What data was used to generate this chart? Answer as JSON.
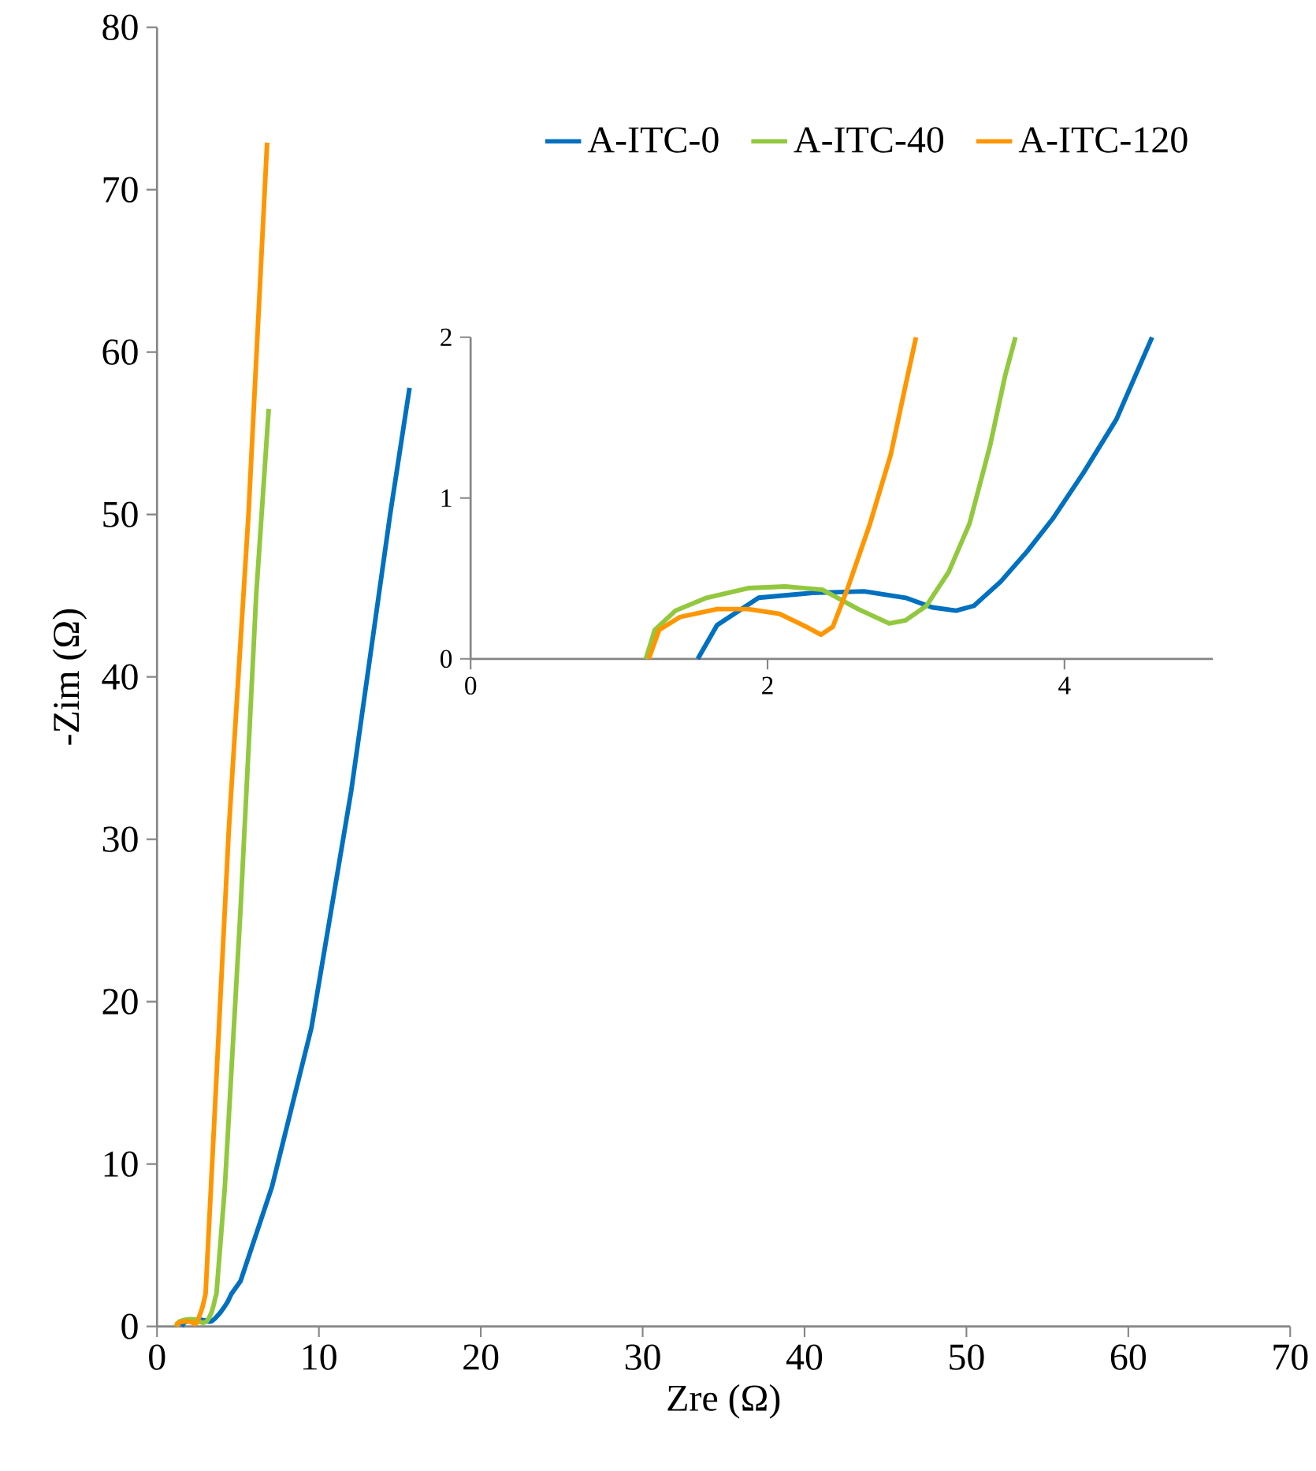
{
  "chart_data": [
    {
      "type": "line",
      "xlabel": "Zre (Ω)",
      "ylabel": "-Zim (Ω)",
      "xlim": [
        0,
        70
      ],
      "ylim": [
        0,
        80
      ],
      "xticks": [
        0,
        10,
        20,
        30,
        40,
        50,
        60,
        70
      ],
      "yticks": [
        0,
        10,
        20,
        30,
        40,
        50,
        60,
        70,
        80
      ],
      "legend": "top right",
      "series": [
        {
          "name": "A-ITC-0",
          "color": "#0070c0",
          "x": [
            1.53,
            1.66,
            1.94,
            2.3,
            2.65,
            2.93,
            3.11,
            3.27,
            3.39,
            3.57,
            3.75,
            3.92,
            4.13,
            4.35,
            4.59,
            5.16,
            7.1,
            9.54,
            12.0,
            14.4,
            15.6
          ],
          "values": [
            0,
            0.21,
            0.38,
            0.41,
            0.42,
            0.38,
            0.32,
            0.3,
            0.33,
            0.48,
            0.67,
            0.87,
            1.16,
            1.49,
            2.0,
            2.8,
            8.6,
            18.4,
            33,
            50,
            57.8
          ]
        },
        {
          "name": "A-ITC-40",
          "color": "#92c83e",
          "x": [
            1.18,
            1.24,
            1.38,
            1.59,
            1.87,
            2.12,
            2.37,
            2.61,
            2.82,
            2.93,
            3.07,
            3.22,
            3.36,
            3.5,
            3.6,
            3.67,
            4.19,
            5.16,
            6.13,
            6.9
          ],
          "values": [
            0,
            0.18,
            0.3,
            0.38,
            0.44,
            0.45,
            0.43,
            0.31,
            0.22,
            0.24,
            0.33,
            0.54,
            0.84,
            1.33,
            1.76,
            2.0,
            8.6,
            25.7,
            45.1,
            56.5
          ]
        },
        {
          "name": "A-ITC-120",
          "color": "#ff9600",
          "x": [
            1.2,
            1.27,
            1.41,
            1.66,
            1.87,
            2.08,
            2.26,
            2.36,
            2.44,
            2.54,
            2.69,
            2.83,
            2.92,
            3.0,
            3.46,
            4.43,
            5.65,
            6.8
          ],
          "values": [
            0,
            0.18,
            0.26,
            0.31,
            0.31,
            0.28,
            0.2,
            0.15,
            0.2,
            0.44,
            0.84,
            1.27,
            1.66,
            2.0,
            11.1,
            30.5,
            50,
            72.9
          ]
        }
      ]
    },
    {
      "type": "line",
      "xlim": [
        0,
        5
      ],
      "ylim": [
        0,
        2
      ],
      "xticks": [
        0,
        2,
        4
      ],
      "yticks": [
        0,
        1,
        2
      ],
      "series": [
        {
          "color": "#0070c0",
          "x": [
            1.53,
            1.66,
            1.94,
            2.3,
            2.65,
            2.93,
            3.11,
            3.27,
            3.39,
            3.57,
            3.75,
            3.92,
            4.13,
            4.35,
            4.59
          ],
          "values": [
            0,
            0.21,
            0.38,
            0.41,
            0.42,
            0.38,
            0.32,
            0.3,
            0.33,
            0.48,
            0.67,
            0.87,
            1.16,
            1.49,
            2.0
          ]
        },
        {
          "color": "#92c83e",
          "x": [
            1.18,
            1.24,
            1.38,
            1.59,
            1.87,
            2.12,
            2.37,
            2.61,
            2.82,
            2.93,
            3.07,
            3.22,
            3.36,
            3.5,
            3.6,
            3.67
          ],
          "values": [
            0,
            0.18,
            0.3,
            0.38,
            0.44,
            0.45,
            0.43,
            0.31,
            0.22,
            0.24,
            0.33,
            0.54,
            0.84,
            1.33,
            1.76,
            2.0
          ]
        },
        {
          "color": "#ff9600",
          "x": [
            1.2,
            1.27,
            1.41,
            1.66,
            1.87,
            2.08,
            2.26,
            2.36,
            2.44,
            2.54,
            2.69,
            2.83,
            2.92,
            3.0
          ],
          "values": [
            0,
            0.18,
            0.26,
            0.31,
            0.31,
            0.28,
            0.2,
            0.15,
            0.2,
            0.44,
            0.84,
            1.27,
            1.66,
            2.0
          ]
        }
      ]
    }
  ]
}
